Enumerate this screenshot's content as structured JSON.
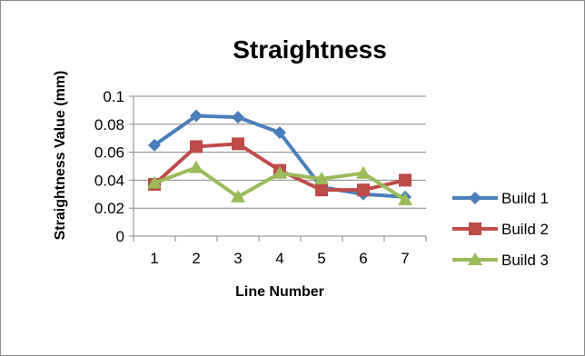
{
  "chart_data": {
    "type": "line",
    "title": "Straightness",
    "xlabel": "Line Number",
    "ylabel": "Straightness Value (mm)",
    "x": [
      1,
      2,
      3,
      4,
      5,
      6,
      7
    ],
    "ylim": [
      0,
      0.1
    ],
    "yticks": [
      "0",
      "0.02",
      "0.04",
      "0.06",
      "0.08",
      "0.1"
    ],
    "grid": true,
    "legend_position": "right",
    "series": [
      {
        "name": "Build 1",
        "color": "#4a7ebb",
        "marker": "diamond",
        "values": [
          0.065,
          0.086,
          0.085,
          0.074,
          0.035,
          0.03,
          0.028
        ]
      },
      {
        "name": "Build 2",
        "color": "#be4b48",
        "marker": "square",
        "values": [
          0.037,
          0.064,
          0.066,
          0.047,
          0.033,
          0.033,
          0.04
        ]
      },
      {
        "name": "Build 3",
        "color": "#9bbb59",
        "marker": "triangle",
        "values": [
          0.038,
          0.049,
          0.028,
          0.045,
          0.041,
          0.045,
          0.026
        ]
      }
    ]
  }
}
